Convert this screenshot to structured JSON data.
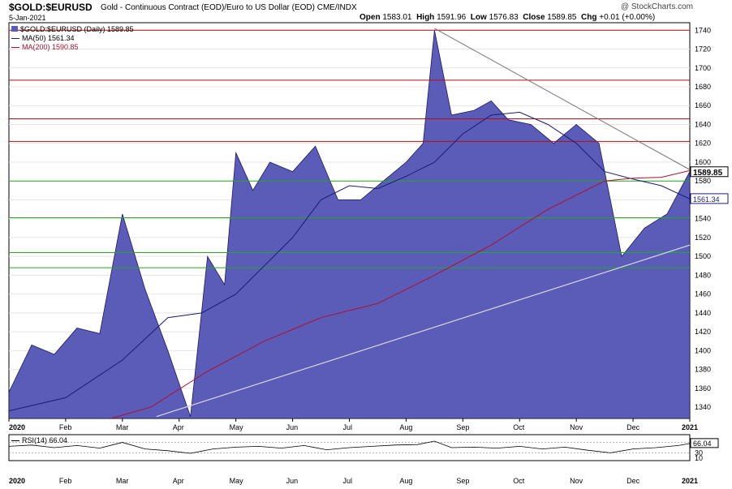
{
  "header": {
    "symbol": "$GOLD:$EURUSD",
    "name": "Gold - Continuous Contract (EOD)/Euro to US Dollar (EOD)  CME/INDX",
    "date": "5-Jan-2021",
    "brand": "@ StockCharts.com",
    "open_label": "Open",
    "open": "1583.01",
    "high_label": "High",
    "high": "1591.96",
    "low_label": "Low",
    "low": "1576.83",
    "close_label": "Close",
    "close": "1589.85",
    "chg_label": "Chg",
    "chg": "+0.01 (+0.00%)"
  },
  "legend": {
    "price": "$GOLD:$EURUSD (Daily) 1589.85",
    "ma50": "MA(50) 1561.34",
    "ma200": "MA(200) 1590.85"
  },
  "colors": {
    "area_fill": "#5b5bb8",
    "area_line": "#1a1a66",
    "ma50": "#1a1a7a",
    "ma200": "#b0102a",
    "resistance": "#b01010",
    "support": "#22aa22",
    "trend_down": "#777777",
    "trend_up": "#d8d8e8"
  },
  "chart_data": [
    {
      "type": "area",
      "ylim": [
        1328,
        1748
      ],
      "yticks": [
        1340,
        1360,
        1380,
        1400,
        1420,
        1440,
        1460,
        1480,
        1500,
        1520,
        1540,
        1560,
        1580,
        1600,
        1620,
        1640,
        1660,
        1680,
        1700,
        1720,
        1740
      ],
      "month_labels": [
        "2020",
        "Feb",
        "Mar",
        "Apr",
        "May",
        "Jun",
        "Jul",
        "Aug",
        "Sep",
        "Oct",
        "Nov",
        "Dec",
        "2021"
      ],
      "last_price": "1589.85",
      "last_ma50": "1561.34",
      "horizontal_levels": {
        "resistance": [
          1740,
          1687,
          1646,
          1622
        ],
        "support": [
          1580,
          1541,
          1504,
          1488
        ]
      },
      "series": [
        {
          "name": "$GOLD:$EURUSD (Daily)",
          "x": [
            0,
            0.4,
            0.8,
            1.2,
            1.6,
            2.0,
            2.4,
            2.8,
            3.2,
            3.5,
            3.8,
            4.0,
            4.3,
            4.6,
            5.0,
            5.4,
            5.8,
            6.2,
            6.6,
            7.0,
            7.3,
            7.5,
            7.8,
            8.2,
            8.5,
            8.8,
            9.2,
            9.6,
            10.0,
            10.4,
            10.8,
            11.2,
            11.6,
            12.0
          ],
          "values": [
            1356,
            1406,
            1396,
            1424,
            1418,
            1545,
            1465,
            1400,
            1330,
            1500,
            1470,
            1610,
            1570,
            1600,
            1590,
            1617,
            1560,
            1560,
            1580,
            1600,
            1620,
            1740,
            1650,
            1655,
            1665,
            1645,
            1640,
            1620,
            1640,
            1620,
            1500,
            1530,
            1545,
            1590
          ]
        },
        {
          "name": "MA(50)",
          "x": [
            0,
            1,
            2,
            2.8,
            3.4,
            4,
            4.5,
            5,
            5.5,
            6,
            6.5,
            7,
            7.5,
            8,
            8.5,
            9,
            9.5,
            10,
            10.5,
            11,
            11.5,
            12
          ],
          "values": [
            1336,
            1350,
            1390,
            1435,
            1440,
            1460,
            1490,
            1520,
            1560,
            1575,
            1572,
            1585,
            1600,
            1630,
            1650,
            1653,
            1640,
            1620,
            1590,
            1582,
            1575,
            1561
          ]
        },
        {
          "name": "MA(200)",
          "x": [
            1.8,
            2.5,
            3.5,
            4.5,
            5.5,
            6.5,
            7.5,
            8.5,
            9.5,
            10.5,
            11,
            11.5,
            12
          ],
          "values": [
            1328,
            1340,
            1378,
            1410,
            1435,
            1450,
            1480,
            1512,
            1550,
            1580,
            1583,
            1584,
            1591
          ]
        }
      ],
      "trendlines": {
        "down": {
          "x": [
            7.5,
            12
          ],
          "values": [
            1742,
            1592
          ]
        },
        "up": {
          "x": [
            2.6,
            12
          ],
          "values": [
            1330,
            1512
          ]
        }
      }
    },
    {
      "type": "line",
      "name": "RSI(14)",
      "legend": "RSI(14) 66.04",
      "ylim": [
        0,
        100
      ],
      "yticks": [
        70,
        30,
        10
      ],
      "last_value": "66.04",
      "levels": [
        30,
        70
      ],
      "month_labels": [
        "2020",
        "Feb",
        "Mar",
        "Apr",
        "May",
        "Jun",
        "Jul",
        "Aug",
        "Sep",
        "Oct",
        "Nov",
        "Dec",
        "2021"
      ],
      "series": [
        {
          "name": "RSI(14)",
          "x": [
            0,
            0.4,
            0.8,
            1.2,
            1.6,
            2.0,
            2.4,
            2.8,
            3.2,
            3.6,
            4.0,
            4.4,
            4.8,
            5.2,
            5.6,
            6.0,
            6.4,
            6.8,
            7.2,
            7.5,
            7.8,
            8.2,
            8.6,
            9.0,
            9.4,
            9.8,
            10.2,
            10.6,
            11.0,
            11.4,
            11.8,
            12.0
          ],
          "values": [
            55,
            60,
            50,
            58,
            48,
            70,
            45,
            38,
            28,
            45,
            52,
            55,
            48,
            58,
            42,
            50,
            55,
            60,
            62,
            75,
            50,
            52,
            48,
            55,
            45,
            52,
            40,
            30,
            45,
            50,
            58,
            66
          ]
        }
      ]
    }
  ]
}
